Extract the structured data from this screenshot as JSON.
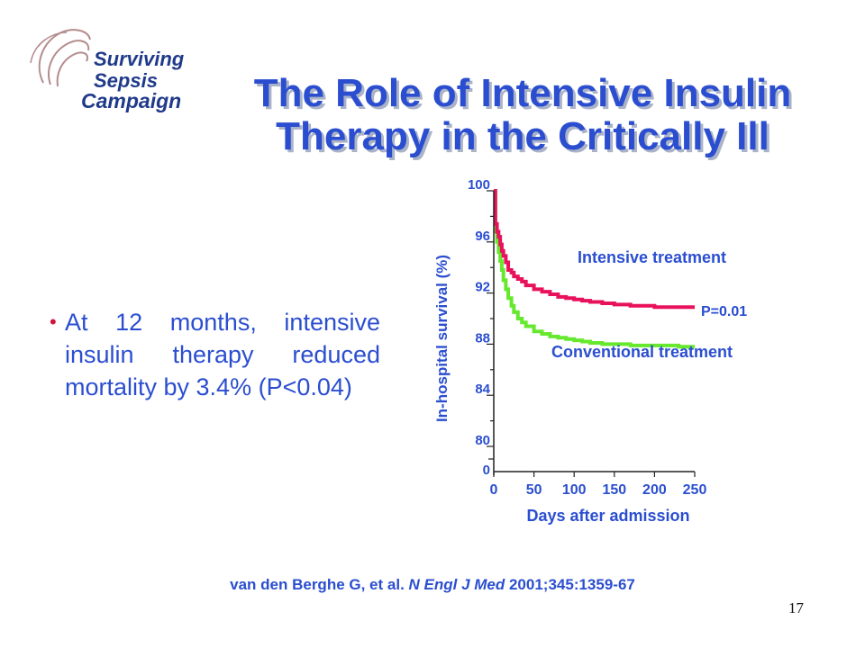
{
  "logo": {
    "line1": "Surviving",
    "line2": "Sepsis",
    "line3": "Campaign",
    "colors": {
      "text": "#1f3a8a",
      "accent": "#b48c8c"
    }
  },
  "slide": {
    "title_line1": "The Role of Intensive Insulin",
    "title_line2": "Therapy in the Critically Ill",
    "bullet": "At 12 months, intensive insulin therapy reduced mortality by 3.4% (P<0.04)",
    "citation_authors": "van den Berghe G, et al. ",
    "citation_journal": "N Engl J Med",
    "citation_rest": " 2001;345:1359-67",
    "page_number": "17"
  },
  "chart_data": {
    "type": "line",
    "xlabel": "Days after admission",
    "ylabel": "In-hospital survival (%)",
    "x_ticks": [
      0,
      50,
      100,
      150,
      200,
      250
    ],
    "y_ticks": [
      80,
      84,
      88,
      92,
      96,
      100
    ],
    "y_break_label": "0",
    "xlim": [
      0,
      250
    ],
    "ylim": [
      78,
      100
    ],
    "y_axis_break": true,
    "annotation": "P=0.01",
    "series": [
      {
        "name": "Intensive treatment",
        "color": "#e8115b",
        "step": true,
        "x": [
          0,
          2,
          4,
          6,
          8,
          10,
          12,
          15,
          18,
          22,
          25,
          30,
          35,
          40,
          50,
          60,
          70,
          80,
          90,
          100,
          110,
          120,
          135,
          150,
          170,
          200,
          230,
          250
        ],
        "y": [
          100,
          97.4,
          96.8,
          96.4,
          95.8,
          95.3,
          94.9,
          94.4,
          93.8,
          93.6,
          93.3,
          93.1,
          92.9,
          92.6,
          92.3,
          92.1,
          91.9,
          91.7,
          91.6,
          91.5,
          91.4,
          91.3,
          91.2,
          91.1,
          91.0,
          90.9,
          90.9,
          90.9
        ]
      },
      {
        "name": "Conventional treatment",
        "color": "#66e82e",
        "step": true,
        "x": [
          0,
          2,
          4,
          6,
          8,
          10,
          12,
          15,
          18,
          22,
          25,
          30,
          35,
          40,
          50,
          60,
          70,
          80,
          90,
          100,
          110,
          120,
          135,
          150,
          170,
          200,
          230,
          250
        ],
        "y": [
          100,
          96.8,
          96.0,
          95.2,
          94.5,
          93.8,
          93.0,
          92.3,
          91.6,
          91.0,
          90.5,
          90.0,
          89.7,
          89.4,
          89.0,
          88.8,
          88.6,
          88.5,
          88.4,
          88.3,
          88.2,
          88.1,
          88.0,
          88.0,
          87.9,
          87.9,
          87.8,
          87.8
        ]
      }
    ]
  }
}
